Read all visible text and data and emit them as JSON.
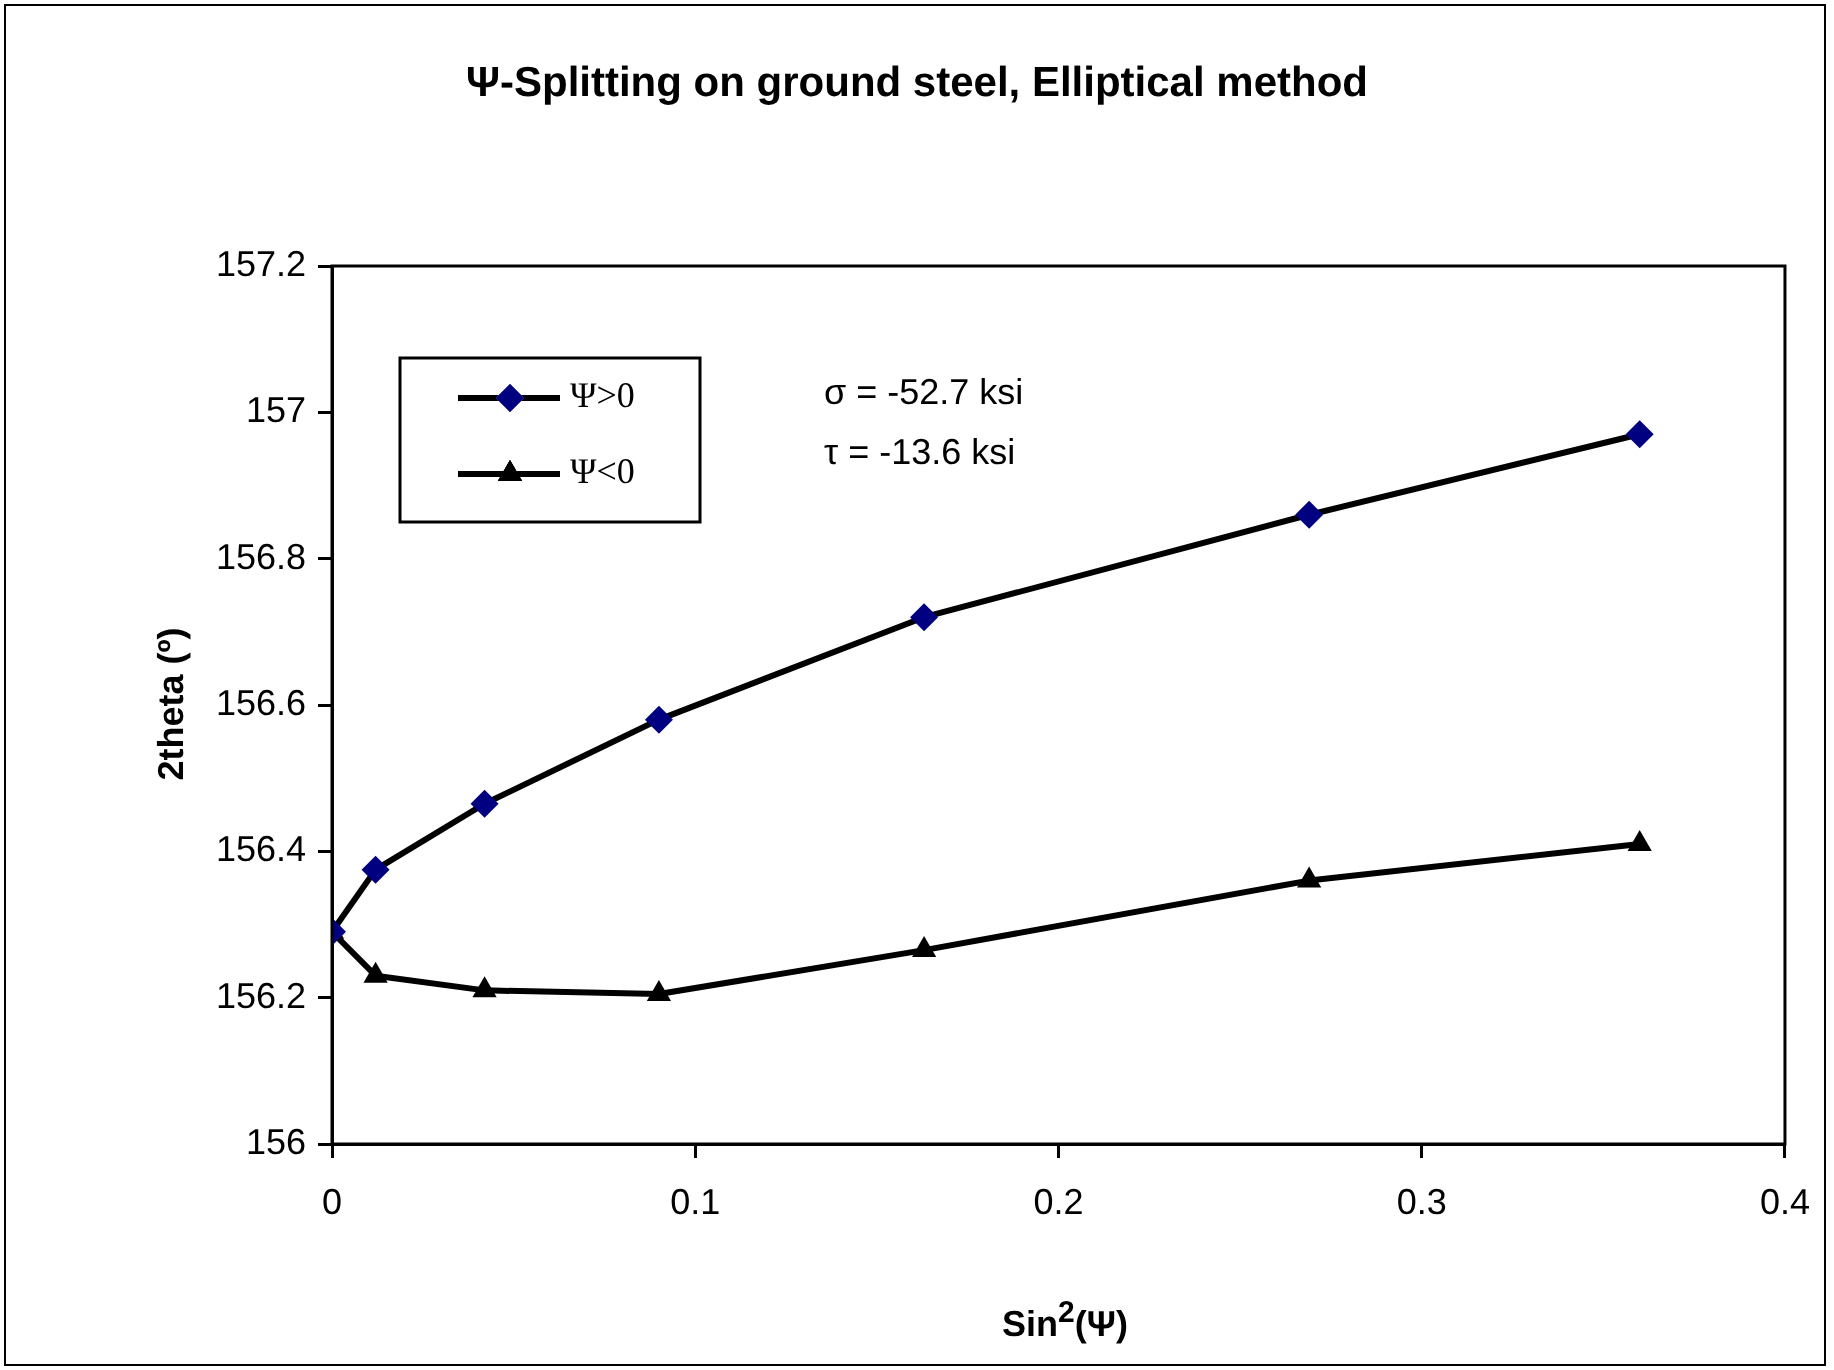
{
  "chart_data": {
    "type": "line",
    "title": "Ψ-Splitting on ground steel, Elliptical method",
    "xlabel": "Sin$^{2}$(Ψ)",
    "ylabel": "2theta (º)",
    "annotations": [
      "σ = -52.7 ksi",
      "τ = -13.6 ksi"
    ],
    "x": [
      0,
      0.012,
      0.042,
      0.09,
      0.163,
      0.269,
      0.36
    ],
    "series": [
      {
        "name": "Ψ>0",
        "color": "#000080",
        "marker": "diamond",
        "values": [
          156.29,
          156.375,
          156.465,
          156.58,
          156.72,
          156.86,
          156.97
        ]
      },
      {
        "name": "Ψ<0",
        "color": "#000000",
        "marker": "triangle",
        "values": [
          156.29,
          156.23,
          156.21,
          156.205,
          156.265,
          156.36,
          156.41
        ]
      }
    ],
    "xlim": [
      0,
      0.4
    ],
    "xticks": [
      0,
      0.1,
      0.2,
      0.3,
      0.4
    ],
    "ylim": [
      156,
      157.2
    ],
    "yticks": [
      156,
      156.2,
      156.4,
      156.6,
      156.8,
      157,
      157.2
    ],
    "grid": false,
    "legend": "top left",
    "line_style": "solid"
  }
}
